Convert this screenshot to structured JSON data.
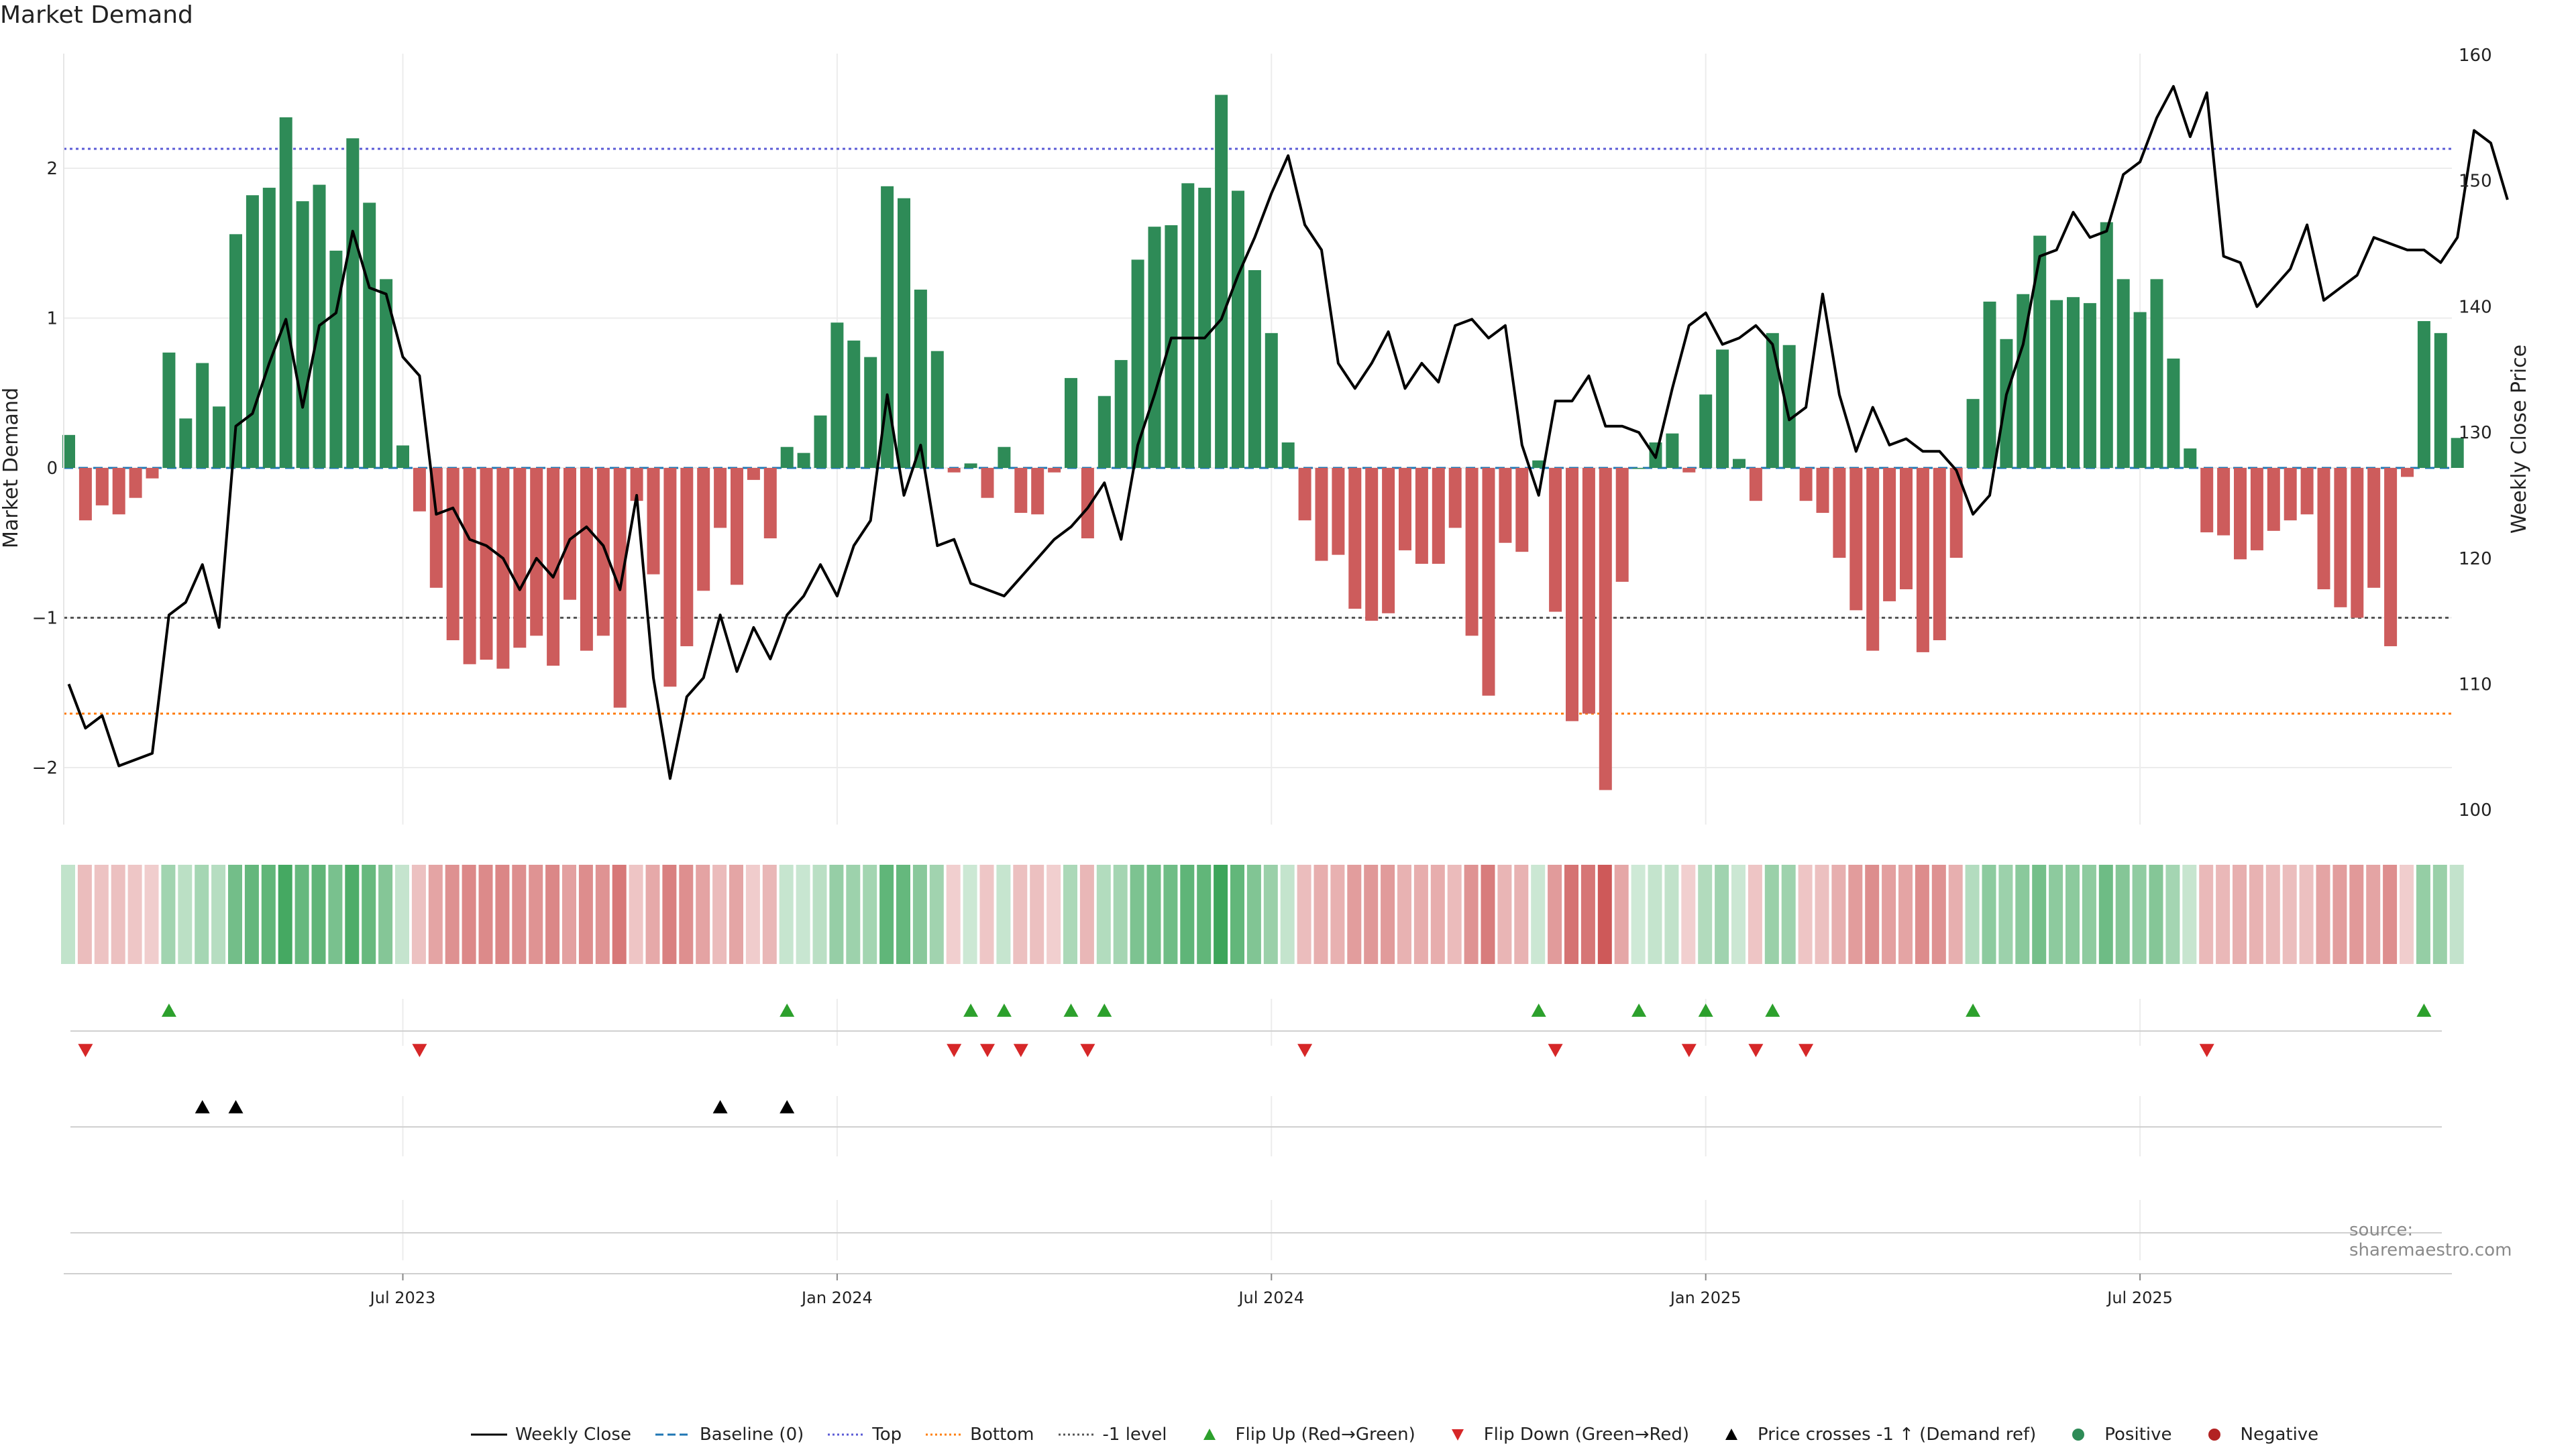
{
  "colors": {
    "positive": "#2e8b57",
    "negative": "#cd5c5c",
    "line": "#000000",
    "baseline": "#1f77b4",
    "top": "#5b5bd6",
    "bottom": "#ff7f0e",
    "minus1": "#555555",
    "flip_up": "#2ca02c",
    "flip_down": "#d62728"
  },
  "chart_data": {
    "type": "bar+line",
    "title": "Market Demand",
    "ylabel_left": "Market Demand",
    "ylabel_right": "Weekly Close Price",
    "ylim_left": [
      -2.4,
      2.75
    ],
    "ylim_right": [
      98.5,
      160
    ],
    "yticks_left": [
      {
        "value": 2,
        "label": "2"
      },
      {
        "value": 1,
        "label": "1"
      },
      {
        "value": 0,
        "label": "0"
      },
      {
        "value": -1,
        "label": "−1"
      },
      {
        "value": -2,
        "label": "−2"
      }
    ],
    "yticks_right": [
      {
        "value": 160,
        "label": "160"
      },
      {
        "value": 150,
        "label": "150"
      },
      {
        "value": 140,
        "label": "140"
      },
      {
        "value": 130,
        "label": "130"
      },
      {
        "value": 120,
        "label": "120"
      },
      {
        "value": 110,
        "label": "110"
      },
      {
        "value": 100,
        "label": "100"
      }
    ],
    "xticks": [
      {
        "week": 20,
        "label": "Jul 2023"
      },
      {
        "week": 46,
        "label": "Jan 2024"
      },
      {
        "week": 72,
        "label": "Jul 2024"
      },
      {
        "week": 98,
        "label": "Jan 2025"
      },
      {
        "week": 124,
        "label": "Jul 2025"
      }
    ],
    "reference_levels": {
      "baseline": 0,
      "top": 2.13,
      "bottom": -1.64,
      "minus1": -1
    },
    "demand": [
      0.22,
      -0.35,
      -0.25,
      -0.31,
      -0.2,
      -0.07,
      0.77,
      0.33,
      0.7,
      0.41,
      1.56,
      1.82,
      1.87,
      2.34,
      1.78,
      1.89,
      1.45,
      2.2,
      1.77,
      1.26,
      0.15,
      -0.29,
      -0.8,
      -1.15,
      -1.31,
      -1.28,
      -1.34,
      -1.2,
      -1.12,
      -1.32,
      -0.88,
      -1.22,
      -1.12,
      -1.6,
      -0.22,
      -0.71,
      -1.46,
      -1.19,
      -0.82,
      -0.4,
      -0.78,
      -0.08,
      -0.47,
      0.14,
      0.1,
      0.35,
      0.97,
      0.85,
      0.74,
      1.88,
      1.8,
      1.19,
      0.78,
      -0.03,
      0.03,
      -0.2,
      0.14,
      -0.3,
      -0.31,
      -0.03,
      0.6,
      -0.47,
      0.48,
      0.72,
      1.39,
      1.61,
      1.62,
      1.9,
      1.87,
      2.49,
      1.85,
      1.32,
      0.9,
      0.17,
      -0.35,
      -0.62,
      -0.58,
      -0.94,
      -1.02,
      -0.97,
      -0.55,
      -0.64,
      -0.64,
      -0.4,
      -1.12,
      -1.52,
      -0.5,
      -0.56,
      0.05,
      -0.96,
      -1.69,
      -1.64,
      -2.15,
      -0.76,
      0.0,
      0.17,
      0.23,
      -0.03,
      0.49,
      0.79,
      0.06,
      -0.22,
      0.9,
      0.82,
      -0.22,
      -0.3,
      -0.6,
      -0.95,
      -1.22,
      -0.89,
      -0.81,
      -1.23,
      -1.15,
      -0.6,
      0.46,
      1.11,
      0.86,
      1.16,
      1.55,
      1.12,
      1.14,
      1.1,
      1.64,
      1.26,
      1.04,
      1.26,
      0.73,
      0.13,
      -0.43,
      -0.45,
      -0.61,
      -0.55,
      -0.42,
      -0.35,
      -0.31,
      -0.81,
      -0.93,
      -1.0,
      -0.8,
      -1.19,
      -0.06,
      0.98,
      0.9,
      0.2
    ],
    "weekly_close": [
      110,
      106.5,
      107.5,
      103.5,
      104,
      104.5,
      115.5,
      116.5,
      119.5,
      114.5,
      130.5,
      131.5,
      135.5,
      139,
      132,
      138.5,
      139.5,
      146,
      141.5,
      141,
      136,
      134.5,
      123.5,
      124,
      121.5,
      121,
      120,
      117.5,
      120,
      118.5,
      121.5,
      122.5,
      121,
      117.5,
      125,
      110.5,
      102.5,
      109,
      110.5,
      115.5,
      111,
      114.5,
      112,
      115.5,
      117,
      119.5,
      117,
      121,
      123,
      133,
      125,
      129,
      121,
      121.5,
      118,
      117.5,
      117,
      118.5,
      120,
      121.5,
      122.5,
      124,
      126,
      121.5,
      129,
      133,
      137.5,
      137.5,
      137.5,
      139,
      142.5,
      145.5,
      149,
      152,
      146.5,
      144.5,
      135.5,
      133.5,
      135.5,
      138,
      133.5,
      135.5,
      134,
      138.5,
      139,
      137.5,
      138.5,
      129,
      125,
      132.5,
      132.5,
      134.5,
      130.5,
      130.5,
      130,
      128,
      133.5,
      138.5,
      139.5,
      137,
      137.5,
      138.5,
      137,
      131,
      132,
      141,
      133,
      128.5,
      132,
      129,
      129.5,
      128.5,
      128.5,
      127,
      123.5,
      125,
      133,
      137,
      144,
      144.5,
      147.5,
      145.5,
      146,
      150.5,
      151.5,
      155,
      157.5,
      153.5,
      157,
      144,
      143.5,
      140,
      141.5,
      143,
      146.5,
      140.5,
      141.5,
      142.5,
      145.5,
      145,
      144.5,
      144.5,
      143.5,
      145.5,
      154,
      153,
      148.5
    ]
  },
  "markers": {
    "flip_up_weeks": [
      6,
      43,
      54,
      56,
      60,
      62,
      88,
      94,
      98,
      102,
      114,
      141
    ],
    "flip_down_weeks": [
      1,
      21,
      53,
      55,
      57,
      61,
      74,
      89,
      97,
      101,
      104,
      128
    ],
    "price_cross_weeks": [
      8,
      10,
      39,
      43
    ]
  },
  "legend": [
    {
      "id": "weekly-close",
      "label": "Weekly Close",
      "style": "solid",
      "color": "#000000"
    },
    {
      "id": "baseline",
      "label": "Baseline (0)",
      "style": "dashed",
      "color": "#1f77b4"
    },
    {
      "id": "top",
      "label": "Top",
      "style": "dotted",
      "color": "#5b5bd6"
    },
    {
      "id": "bottom",
      "label": "Bottom",
      "style": "dotted",
      "color": "#ff7f0e"
    },
    {
      "id": "minus1",
      "label": "-1 level",
      "style": "dotted",
      "color": "#555555"
    },
    {
      "id": "flip-up",
      "label": "Flip Up (Red→Green)",
      "style": "tri-up",
      "color": "#2ca02c"
    },
    {
      "id": "flip-down",
      "label": "Flip Down (Green→Red)",
      "style": "tri-down",
      "color": "#d62728"
    },
    {
      "id": "price-cross",
      "label": "Price crosses -1 ↑ (Demand ref)",
      "style": "tri-up",
      "color": "#000000"
    },
    {
      "id": "positive",
      "label": "Positive",
      "style": "dot",
      "color": "#2e8b57"
    },
    {
      "id": "negative",
      "label": "Negative",
      "style": "dot",
      "color": "#b22222"
    }
  ],
  "source": "source: sharemaestro.com"
}
